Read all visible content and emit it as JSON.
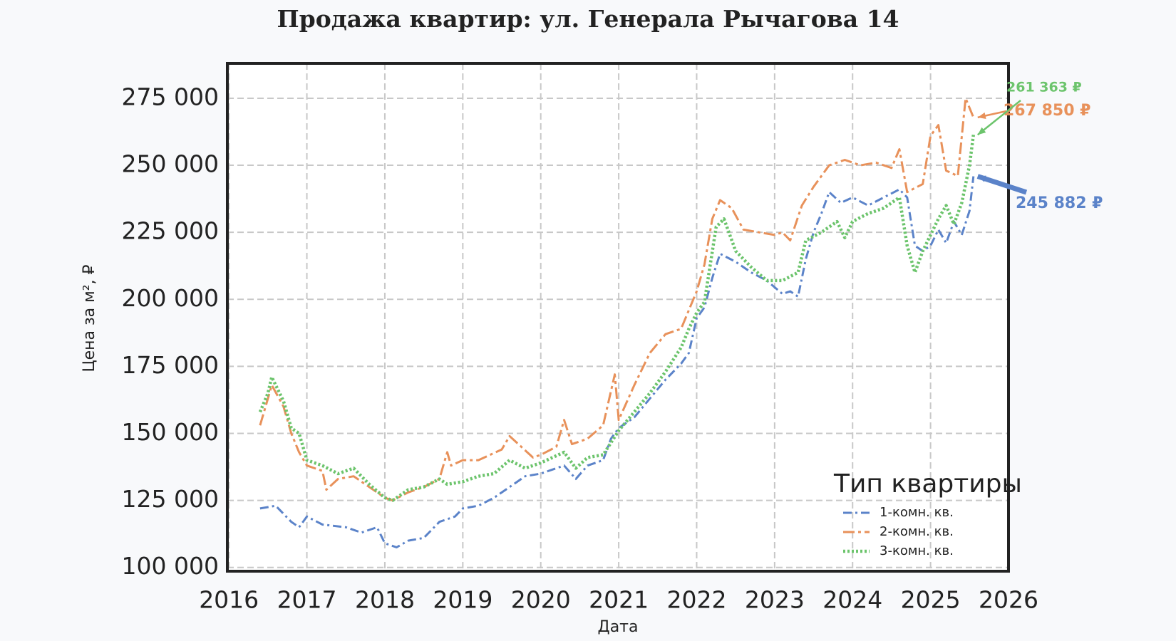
{
  "chart_data": {
    "type": "line",
    "title": "Продажа квартир: ул. Генерала Рычагова 14",
    "x_label": "Дата",
    "y_label": "Цена за м², ₽",
    "xlim": [
      2015.98,
      2026.0
    ],
    "xticks": [
      2016,
      2017,
      2018,
      2019,
      2020,
      2021,
      2022,
      2023,
      2024,
      2025,
      2026
    ],
    "ylim": [
      98600,
      288000
    ],
    "yticks": [
      {
        "value": 100000,
        "label": "100 000"
      },
      {
        "value": 125000,
        "label": "125 000"
      },
      {
        "value": 150000,
        "label": "150 000"
      },
      {
        "value": 175000,
        "label": "175 000"
      },
      {
        "value": 200000,
        "label": "200 000"
      },
      {
        "value": 225000,
        "label": "225 000"
      },
      {
        "value": 250000,
        "label": "250 000"
      },
      {
        "value": 275000,
        "label": "275 000"
      }
    ],
    "grid": true,
    "legend_title": "Тип квартиры",
    "legend_position": "lower right",
    "series": [
      {
        "name": "1-комн. кв.",
        "color": "#5b83c9",
        "x": [
          2016.4,
          2016.6,
          2016.8,
          2016.9,
          2017.0,
          2017.2,
          2017.5,
          2017.7,
          2017.9,
          2018.0,
          2018.15,
          2018.3,
          2018.5,
          2018.7,
          2018.9,
          2019.0,
          2019.2,
          2019.4,
          2019.6,
          2019.8,
          2020.0,
          2020.2,
          2020.3,
          2020.45,
          2020.6,
          2020.8,
          2020.9,
          2021.0,
          2021.2,
          2021.4,
          2021.6,
          2021.8,
          2021.9,
          2022.0,
          2022.1,
          2022.2,
          2022.3,
          2022.5,
          2022.7,
          2022.9,
          2023.1,
          2023.2,
          2023.3,
          2023.4,
          2023.5,
          2023.6,
          2023.7,
          2023.85,
          2024.0,
          2024.2,
          2024.4,
          2024.6,
          2024.7,
          2024.8,
          2024.9,
          2025.0,
          2025.1,
          2025.2,
          2025.3,
          2025.4,
          2025.5,
          2025.55
        ],
        "values": [
          122000,
          123000,
          117000,
          115000,
          119000,
          116000,
          115000,
          113000,
          115000,
          109000,
          107500,
          110000,
          111000,
          117000,
          119000,
          122000,
          123000,
          126000,
          130000,
          134000,
          135000,
          137000,
          138000,
          133000,
          138000,
          140000,
          148000,
          152000,
          156000,
          163000,
          170000,
          176000,
          180000,
          193000,
          197000,
          208000,
          217000,
          214000,
          210000,
          207000,
          202000,
          203000,
          201000,
          215000,
          225000,
          232000,
          240000,
          236000,
          238000,
          235000,
          238000,
          241000,
          238000,
          220000,
          218000,
          220000,
          226000,
          221000,
          229000,
          224000,
          233000,
          245882
        ],
        "value_labels": [
          null,
          null,
          null,
          null,
          null,
          null,
          null,
          null,
          null,
          null,
          null,
          null,
          null,
          null,
          null,
          null,
          null,
          null,
          null,
          null,
          null,
          null,
          null,
          null,
          null,
          null,
          null,
          null,
          null,
          null,
          null,
          null,
          null,
          null,
          null,
          null,
          null,
          null,
          null,
          null,
          null,
          null,
          null,
          null,
          null,
          null,
          null,
          null,
          null,
          null,
          null,
          null,
          null,
          null,
          null,
          null,
          null,
          null,
          null,
          null,
          null,
          "245 882 ₽"
        ]
      },
      {
        "name": "2-комн. кв.",
        "color": "#e8915a",
        "x": [
          2016.4,
          2016.5,
          2016.55,
          2016.7,
          2016.8,
          2016.9,
          2017.0,
          2017.2,
          2017.25,
          2017.4,
          2017.6,
          2017.8,
          2018.0,
          2018.1,
          2018.3,
          2018.5,
          2018.7,
          2018.8,
          2018.85,
          2019.0,
          2019.2,
          2019.5,
          2019.6,
          2019.75,
          2019.9,
          2020.0,
          2020.2,
          2020.3,
          2020.4,
          2020.6,
          2020.8,
          2020.95,
          2021.0,
          2021.2,
          2021.4,
          2021.6,
          2021.8,
          2022.0,
          2022.1,
          2022.2,
          2022.3,
          2022.45,
          2022.6,
          2022.8,
          2023.0,
          2023.1,
          2023.2,
          2023.35,
          2023.5,
          2023.7,
          2023.9,
          2024.1,
          2024.3,
          2024.5,
          2024.6,
          2024.7,
          2024.9,
          2025.0,
          2025.1,
          2025.2,
          2025.35,
          2025.45,
          2025.55
        ],
        "values": [
          153000,
          163000,
          168000,
          160000,
          150000,
          143000,
          138000,
          136000,
          129000,
          133000,
          134000,
          130000,
          126000,
          125000,
          128000,
          130000,
          133000,
          143000,
          138000,
          140000,
          140000,
          144000,
          149000,
          145000,
          141000,
          142000,
          145000,
          155000,
          146000,
          148000,
          153000,
          172000,
          155000,
          168000,
          180000,
          187000,
          189000,
          203000,
          213000,
          230000,
          237000,
          234000,
          226000,
          225000,
          224000,
          225000,
          222000,
          235000,
          242000,
          250000,
          252000,
          250000,
          251000,
          249000,
          256000,
          240000,
          243000,
          261000,
          265000,
          248000,
          246000,
          275000,
          267850
        ],
        "value_labels": [
          null,
          null,
          null,
          null,
          null,
          null,
          null,
          null,
          null,
          null,
          null,
          null,
          null,
          null,
          null,
          null,
          null,
          null,
          null,
          null,
          null,
          null,
          null,
          null,
          null,
          null,
          null,
          null,
          null,
          null,
          null,
          null,
          null,
          null,
          null,
          null,
          null,
          null,
          null,
          null,
          null,
          null,
          null,
          null,
          null,
          null,
          null,
          null,
          null,
          null,
          null,
          null,
          null,
          null,
          null,
          null,
          null,
          null,
          null,
          null,
          null,
          null,
          "267 850 ₽"
        ]
      },
      {
        "name": "3-комн. кв.",
        "color": "#6cc46c",
        "x": [
          2016.4,
          2016.5,
          2016.55,
          2016.7,
          2016.8,
          2016.9,
          2017.0,
          2017.2,
          2017.4,
          2017.6,
          2017.8,
          2018.0,
          2018.1,
          2018.3,
          2018.5,
          2018.7,
          2018.8,
          2019.0,
          2019.2,
          2019.4,
          2019.6,
          2019.8,
          2020.0,
          2020.3,
          2020.45,
          2020.6,
          2020.8,
          2021.0,
          2021.2,
          2021.4,
          2021.6,
          2021.8,
          2021.9,
          2022.0,
          2022.1,
          2022.25,
          2022.35,
          2022.5,
          2022.7,
          2022.9,
          2023.1,
          2023.3,
          2023.4,
          2023.6,
          2023.8,
          2023.9,
          2024.0,
          2024.2,
          2024.4,
          2024.6,
          2024.7,
          2024.8,
          2024.9,
          2025.0,
          2025.1,
          2025.2,
          2025.3,
          2025.4,
          2025.5,
          2025.55
        ],
        "values": [
          158000,
          165000,
          171000,
          162000,
          152000,
          150000,
          140000,
          138000,
          135000,
          137000,
          131000,
          126000,
          125000,
          129000,
          130000,
          133000,
          131000,
          132000,
          134000,
          135000,
          140000,
          137000,
          139000,
          143000,
          137000,
          141000,
          142000,
          151000,
          158000,
          165000,
          173000,
          182000,
          189000,
          195000,
          199000,
          227000,
          230000,
          218000,
          212000,
          207000,
          207000,
          210000,
          222000,
          225000,
          229000,
          223000,
          229000,
          232000,
          234000,
          238000,
          220000,
          210000,
          218000,
          224000,
          230000,
          235000,
          228000,
          236000,
          250000,
          261363
        ],
        "value_labels": [
          null,
          null,
          null,
          null,
          null,
          null,
          null,
          null,
          null,
          null,
          null,
          null,
          null,
          null,
          null,
          null,
          null,
          null,
          null,
          null,
          null,
          null,
          null,
          null,
          null,
          null,
          null,
          null,
          null,
          null,
          null,
          null,
          null,
          null,
          null,
          null,
          null,
          null,
          null,
          null,
          null,
          null,
          null,
          null,
          null,
          null,
          null,
          null,
          null,
          null,
          null,
          null,
          null,
          null,
          null,
          null,
          null,
          null,
          null,
          "261 363 ₽"
        ]
      }
    ]
  }
}
